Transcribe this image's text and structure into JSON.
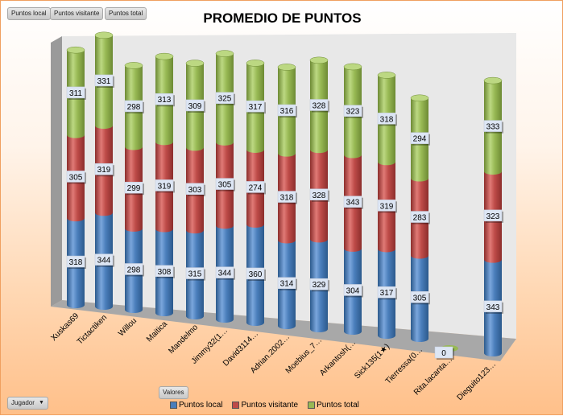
{
  "field_buttons": [
    "Puntos local",
    "Puntos visitante",
    "Puntos total"
  ],
  "values_button": "Valores",
  "axis_button": "Jugador",
  "colors": {
    "local": "#4a7ebb",
    "visitante": "#be4b48",
    "total": "#98b954"
  },
  "chart_data": {
    "type": "bar",
    "title": "PROMEDIO DE PUNTOS",
    "categories": [
      "Xuskas69",
      "Tictactiken",
      "Willou",
      "Maitica",
      "Mandelmo",
      "Jimmy32(1…",
      "David3114…",
      "Adrian.2002…",
      "Moebius_7…",
      "Arkantosh(…",
      "Sick135(1★)",
      "Tierressa(0…",
      "Rita.lacanta…",
      "Dieguito123…"
    ],
    "series": [
      {
        "name": "Puntos local",
        "values": [
          318,
          344,
          298,
          308,
          315,
          344,
          360,
          314,
          329,
          304,
          317,
          305,
          0,
          343
        ]
      },
      {
        "name": "Puntos visitante",
        "values": [
          305,
          319,
          299,
          319,
          303,
          305,
          274,
          318,
          328,
          343,
          319,
          283,
          0,
          323
        ]
      },
      {
        "name": "Puntos total",
        "values": [
          311,
          331,
          298,
          313,
          309,
          325,
          317,
          316,
          328,
          323,
          318,
          294,
          0,
          333
        ]
      }
    ],
    "stacked": true,
    "legend": "bottom",
    "grid": false
  }
}
